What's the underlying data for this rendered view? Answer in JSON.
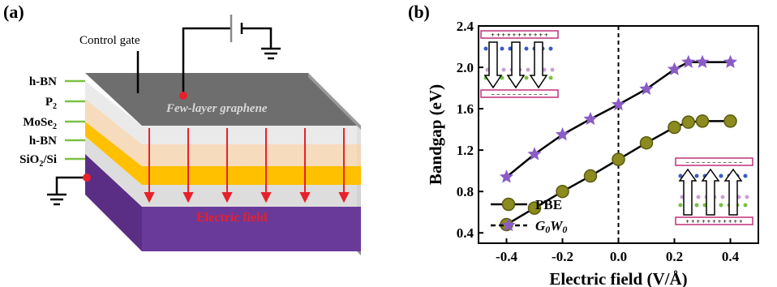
{
  "panel_a": {
    "label": "(a)",
    "control_gate": "Control gate",
    "graphene": "Few-layer graphene",
    "electric_field": "Electric field",
    "layers": [
      {
        "name": "h-BN"
      },
      {
        "name": "P",
        "sub": "2"
      },
      {
        "name": "MoSe",
        "sub": "2"
      },
      {
        "name": "h-BN"
      },
      {
        "name": "SiO",
        "sub": "2",
        "suffix": "/Si"
      }
    ],
    "colors": {
      "top": "#6b6b6b",
      "purple": "#6a3a9a",
      "yellow": "#ffc000",
      "arrow": "#e8202a",
      "label_line": "#7ac143"
    }
  },
  "panel_b": {
    "label": "(b)",
    "inset_signs": {
      "plus": "+ + + + + + + + + + +",
      "minus": "− − − − − − − − − − −"
    }
  },
  "chart_data": {
    "type": "line",
    "xlabel": "Electric field (V/Å)",
    "ylabel": "Bandgap (eV)",
    "xlim": [
      -0.5,
      0.5
    ],
    "ylim": [
      0.3,
      2.4
    ],
    "xticks": [
      "-0.4",
      "-0.2",
      "0.0",
      "0.2",
      "0.4"
    ],
    "yticks": [
      "0.4",
      "0.8",
      "1.2",
      "1.6",
      "2.0",
      "2.4"
    ],
    "legend_position": "bottom-left",
    "series": [
      {
        "name": "PBE",
        "marker": "circle",
        "color": "#8b8b1f",
        "x": [
          -0.4,
          -0.3,
          -0.2,
          -0.1,
          0.0,
          0.1,
          0.2,
          0.25,
          0.3,
          0.4
        ],
        "y": [
          0.48,
          0.64,
          0.8,
          0.95,
          1.11,
          1.27,
          1.42,
          1.47,
          1.48,
          1.48
        ]
      },
      {
        "name": "G0W0",
        "marker": "star",
        "color": "#8a5cc6",
        "x": [
          -0.4,
          -0.3,
          -0.2,
          -0.1,
          0.0,
          0.1,
          0.2,
          0.25,
          0.3,
          0.4
        ],
        "y": [
          0.94,
          1.16,
          1.35,
          1.5,
          1.64,
          1.79,
          1.98,
          2.05,
          2.05,
          2.05
        ]
      }
    ]
  }
}
